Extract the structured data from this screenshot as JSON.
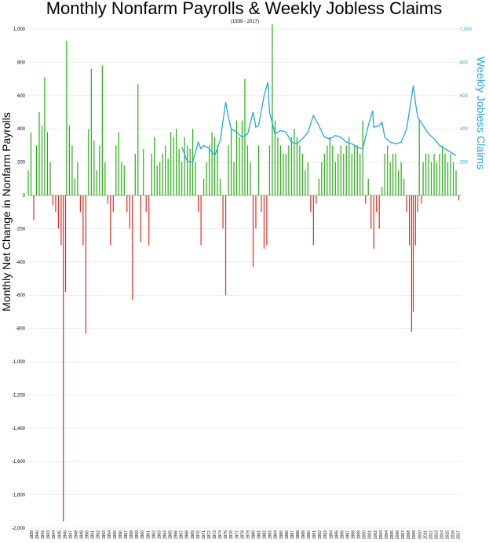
{
  "chart_data": {
    "type": "bar",
    "title": "Monthly Nonfarm Payrolls & Weekly Jobless Claims",
    "subtitle": "(1939 - 2017)",
    "ylabel": "Monthly Net Change in Nonfarm Payrolls",
    "y2label": "Weekly Jobless Claims",
    "ylim": [
      -2000,
      1000
    ],
    "y2lim": [
      0,
      1000
    ],
    "yticks": [
      "1,000",
      "800",
      "600",
      "400",
      "200",
      "0",
      "-200",
      "-400",
      "-600",
      "-800",
      "-1,000",
      "-1,200",
      "-1,400",
      "-1,600",
      "-1,800",
      "-2,000"
    ],
    "y2ticks": [
      "1,000",
      "800",
      "600",
      "400",
      "200"
    ],
    "x_range": [
      "1939",
      "2017"
    ],
    "xticks": [
      "1939",
      "1940",
      "1942",
      "1943",
      "1944",
      "1945",
      "1946",
      "1947",
      "1948",
      "1949",
      "1950",
      "1951",
      "1952",
      "1953",
      "1954",
      "1955",
      "1956",
      "1957",
      "1958",
      "1959",
      "1960",
      "1961",
      "1962",
      "1963",
      "1964",
      "1965",
      "1966",
      "1967",
      "1968",
      "1969",
      "1970",
      "1971",
      "1972",
      "1973",
      "1974",
      "1975",
      "1976",
      "1977",
      "1978",
      "1979",
      "1980",
      "1981",
      "1982",
      "1983",
      "1984",
      "1985",
      "1986",
      "1987",
      "1988",
      "1989",
      "1990",
      "1991",
      "1992",
      "1993",
      "1994",
      "1995",
      "1996",
      "1997",
      "1998",
      "1999",
      "2000",
      "2001",
      "2002",
      "2003",
      "2004",
      "2005",
      "2006",
      "2007",
      "2008",
      "2009",
      "2010",
      "2011",
      "2012",
      "2013",
      "2014",
      "2015",
      "2016",
      "2017"
    ],
    "colors": {
      "positive": "#22b00f",
      "negative": "#e8291c",
      "claims": "#1ea7e6"
    },
    "grid": true,
    "series": [
      {
        "name": "Monthly Net Change in Nonfarm Payrolls",
        "axis": "left",
        "points": [
          [
            1939.0,
            150
          ],
          [
            1939.5,
            380
          ],
          [
            1940.0,
            -150
          ],
          [
            1940.5,
            300
          ],
          [
            1941.0,
            500
          ],
          [
            1941.5,
            420
          ],
          [
            1942.0,
            710
          ],
          [
            1942.5,
            380
          ],
          [
            1943.0,
            200
          ],
          [
            1943.5,
            -60
          ],
          [
            1944.0,
            -100
          ],
          [
            1944.5,
            -200
          ],
          [
            1945.0,
            -300
          ],
          [
            1945.4,
            -1960
          ],
          [
            1945.8,
            -580
          ],
          [
            1946.0,
            930
          ],
          [
            1946.5,
            420
          ],
          [
            1947.0,
            300
          ],
          [
            1947.5,
            100
          ],
          [
            1948.0,
            200
          ],
          [
            1948.5,
            -100
          ],
          [
            1949.0,
            -300
          ],
          [
            1949.5,
            -830
          ],
          [
            1950.0,
            400
          ],
          [
            1950.5,
            760
          ],
          [
            1951.0,
            330
          ],
          [
            1951.5,
            150
          ],
          [
            1952.0,
            300
          ],
          [
            1952.5,
            780
          ],
          [
            1953.0,
            200
          ],
          [
            1953.5,
            -50
          ],
          [
            1954.0,
            -300
          ],
          [
            1954.5,
            -100
          ],
          [
            1955.0,
            300
          ],
          [
            1955.5,
            380
          ],
          [
            1956.0,
            200
          ],
          [
            1956.5,
            180
          ],
          [
            1957.0,
            -100
          ],
          [
            1957.5,
            -200
          ],
          [
            1958.0,
            -630
          ],
          [
            1958.5,
            250
          ],
          [
            1959.0,
            670
          ],
          [
            1959.5,
            -280
          ],
          [
            1960.0,
            280
          ],
          [
            1960.5,
            -100
          ],
          [
            1961.0,
            -300
          ],
          [
            1961.5,
            250
          ],
          [
            1962.0,
            350
          ],
          [
            1962.5,
            180
          ],
          [
            1963.0,
            200
          ],
          [
            1963.5,
            250
          ],
          [
            1964.0,
            300
          ],
          [
            1964.5,
            220
          ],
          [
            1965.0,
            380
          ],
          [
            1965.5,
            350
          ],
          [
            1966.0,
            400
          ],
          [
            1966.5,
            280
          ],
          [
            1967.0,
            200
          ],
          [
            1967.5,
            350
          ],
          [
            1968.0,
            300
          ],
          [
            1968.5,
            280
          ],
          [
            1969.0,
            400
          ],
          [
            1969.5,
            200
          ],
          [
            1970.0,
            -100
          ],
          [
            1970.5,
            -300
          ],
          [
            1971.0,
            100
          ],
          [
            1971.5,
            200
          ],
          [
            1972.0,
            300
          ],
          [
            1972.5,
            380
          ],
          [
            1973.0,
            350
          ],
          [
            1973.5,
            300
          ],
          [
            1974.0,
            100
          ],
          [
            1974.5,
            -200
          ],
          [
            1975.0,
            -600
          ],
          [
            1975.5,
            300
          ],
          [
            1976.0,
            400
          ],
          [
            1976.5,
            200
          ],
          [
            1977.0,
            450
          ],
          [
            1977.5,
            350
          ],
          [
            1978.0,
            450
          ],
          [
            1978.5,
            700
          ],
          [
            1979.0,
            300
          ],
          [
            1979.5,
            200
          ],
          [
            1980.0,
            -430
          ],
          [
            1980.5,
            -200
          ],
          [
            1981.0,
            300
          ],
          [
            1981.5,
            -100
          ],
          [
            1982.0,
            -320
          ],
          [
            1982.5,
            -300
          ],
          [
            1983.0,
            300
          ],
          [
            1983.5,
            1030
          ],
          [
            1984.0,
            450
          ],
          [
            1984.5,
            350
          ],
          [
            1985.0,
            300
          ],
          [
            1985.5,
            250
          ],
          [
            1986.0,
            250
          ],
          [
            1986.5,
            300
          ],
          [
            1987.0,
            350
          ],
          [
            1987.5,
            400
          ],
          [
            1988.0,
            350
          ],
          [
            1988.5,
            300
          ],
          [
            1989.0,
            250
          ],
          [
            1989.5,
            150
          ],
          [
            1990.0,
            200
          ],
          [
            1990.5,
            -100
          ],
          [
            1991.0,
            -300
          ],
          [
            1991.5,
            -50
          ],
          [
            1992.0,
            100
          ],
          [
            1992.5,
            200
          ],
          [
            1993.0,
            250
          ],
          [
            1993.5,
            300
          ],
          [
            1994.0,
            350
          ],
          [
            1994.5,
            300
          ],
          [
            1995.0,
            200
          ],
          [
            1995.5,
            250
          ],
          [
            1996.0,
            300
          ],
          [
            1996.5,
            250
          ],
          [
            1997.0,
            300
          ],
          [
            1997.5,
            350
          ],
          [
            1998.0,
            250
          ],
          [
            1998.5,
            300
          ],
          [
            1999.0,
            300
          ],
          [
            1999.5,
            250
          ],
          [
            2000.0,
            450
          ],
          [
            2000.5,
            -50
          ],
          [
            2001.0,
            100
          ],
          [
            2001.5,
            -200
          ],
          [
            2002.0,
            -320
          ],
          [
            2002.5,
            -100
          ],
          [
            2003.0,
            -200
          ],
          [
            2003.5,
            50
          ],
          [
            2004.0,
            250
          ],
          [
            2004.5,
            300
          ],
          [
            2005.0,
            200
          ],
          [
            2005.5,
            250
          ],
          [
            2006.0,
            250
          ],
          [
            2006.5,
            150
          ],
          [
            2007.0,
            200
          ],
          [
            2007.5,
            100
          ],
          [
            2008.0,
            -100
          ],
          [
            2008.5,
            -300
          ],
          [
            2008.9,
            -820
          ],
          [
            2009.2,
            -700
          ],
          [
            2009.6,
            -300
          ],
          [
            2010.0,
            -100
          ],
          [
            2010.3,
            450
          ],
          [
            2010.7,
            -50
          ],
          [
            2011.0,
            200
          ],
          [
            2011.5,
            250
          ],
          [
            2012.0,
            250
          ],
          [
            2012.5,
            200
          ],
          [
            2013.0,
            250
          ],
          [
            2013.5,
            200
          ],
          [
            2014.0,
            250
          ],
          [
            2014.5,
            300
          ],
          [
            2015.0,
            250
          ],
          [
            2015.5,
            200
          ],
          [
            2016.0,
            250
          ],
          [
            2016.5,
            200
          ],
          [
            2017.0,
            150
          ],
          [
            2017.5,
            -30
          ]
        ]
      },
      {
        "name": "Weekly Jobless Claims",
        "axis": "right",
        "points": [
          [
            1967.0,
            290
          ],
          [
            1968.0,
            205
          ],
          [
            1969.0,
            200
          ],
          [
            1970.0,
            320
          ],
          [
            1970.5,
            280
          ],
          [
            1971.0,
            300
          ],
          [
            1972.0,
            280
          ],
          [
            1973.0,
            240
          ],
          [
            1974.0,
            330
          ],
          [
            1975.0,
            560
          ],
          [
            1975.5,
            470
          ],
          [
            1976.0,
            400
          ],
          [
            1977.0,
            380
          ],
          [
            1978.0,
            350
          ],
          [
            1979.0,
            370
          ],
          [
            1980.0,
            500
          ],
          [
            1980.5,
            410
          ],
          [
            1981.0,
            420
          ],
          [
            1982.0,
            600
          ],
          [
            1982.7,
            680
          ],
          [
            1983.0,
            500
          ],
          [
            1984.0,
            370
          ],
          [
            1985.0,
            390
          ],
          [
            1986.0,
            380
          ],
          [
            1987.0,
            320
          ],
          [
            1988.0,
            310
          ],
          [
            1989.0,
            340
          ],
          [
            1990.0,
            380
          ],
          [
            1991.0,
            480
          ],
          [
            1992.0,
            420
          ],
          [
            1993.0,
            350
          ],
          [
            1994.0,
            340
          ],
          [
            1995.0,
            360
          ],
          [
            1996.0,
            350
          ],
          [
            1997.0,
            320
          ],
          [
            1998.0,
            310
          ],
          [
            1999.0,
            290
          ],
          [
            2000.0,
            280
          ],
          [
            2001.0,
            420
          ],
          [
            2001.8,
            510
          ],
          [
            2002.0,
            410
          ],
          [
            2003.0,
            420
          ],
          [
            2003.5,
            440
          ],
          [
            2004.0,
            350
          ],
          [
            2005.0,
            320
          ],
          [
            2006.0,
            310
          ],
          [
            2007.0,
            320
          ],
          [
            2008.0,
            400
          ],
          [
            2009.2,
            660
          ],
          [
            2009.6,
            560
          ],
          [
            2010.0,
            470
          ],
          [
            2011.0,
            420
          ],
          [
            2012.0,
            370
          ],
          [
            2013.0,
            340
          ],
          [
            2014.0,
            300
          ],
          [
            2015.0,
            280
          ],
          [
            2016.0,
            260
          ],
          [
            2017.0,
            240
          ]
        ]
      }
    ]
  }
}
